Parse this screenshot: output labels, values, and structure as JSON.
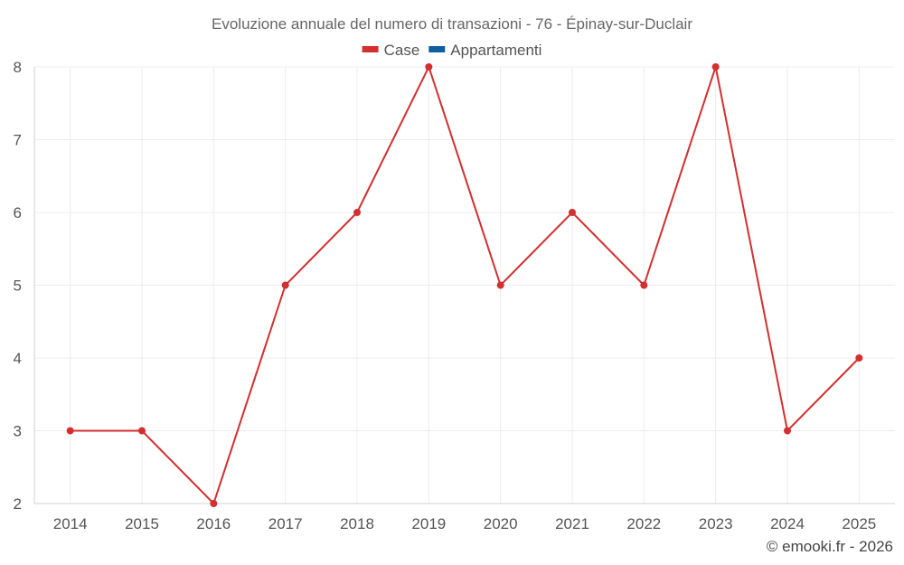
{
  "chart_data": {
    "type": "line",
    "title": "Evoluzione annuale del numero di transazioni - 76 - Épinay-sur-Duclair",
    "xlabel": "",
    "ylabel": "",
    "categories": [
      "2014",
      "2015",
      "2016",
      "2017",
      "2018",
      "2019",
      "2020",
      "2021",
      "2022",
      "2023",
      "2024",
      "2025"
    ],
    "ylim": [
      2,
      8
    ],
    "yticks": [
      2,
      3,
      4,
      5,
      6,
      7,
      8
    ],
    "grid": true,
    "legend_position": "top-center",
    "legend": [
      {
        "name": "Case",
        "color": "#d32f2f"
      },
      {
        "name": "Appartamenti",
        "color": "#0d5fa0"
      }
    ],
    "series": [
      {
        "name": "Case",
        "color": "#d32f2f",
        "values": [
          3,
          3,
          2,
          5,
          6,
          8,
          5,
          6,
          5,
          8,
          3,
          4
        ]
      }
    ]
  },
  "credit": "© emooki.fr - 2026"
}
